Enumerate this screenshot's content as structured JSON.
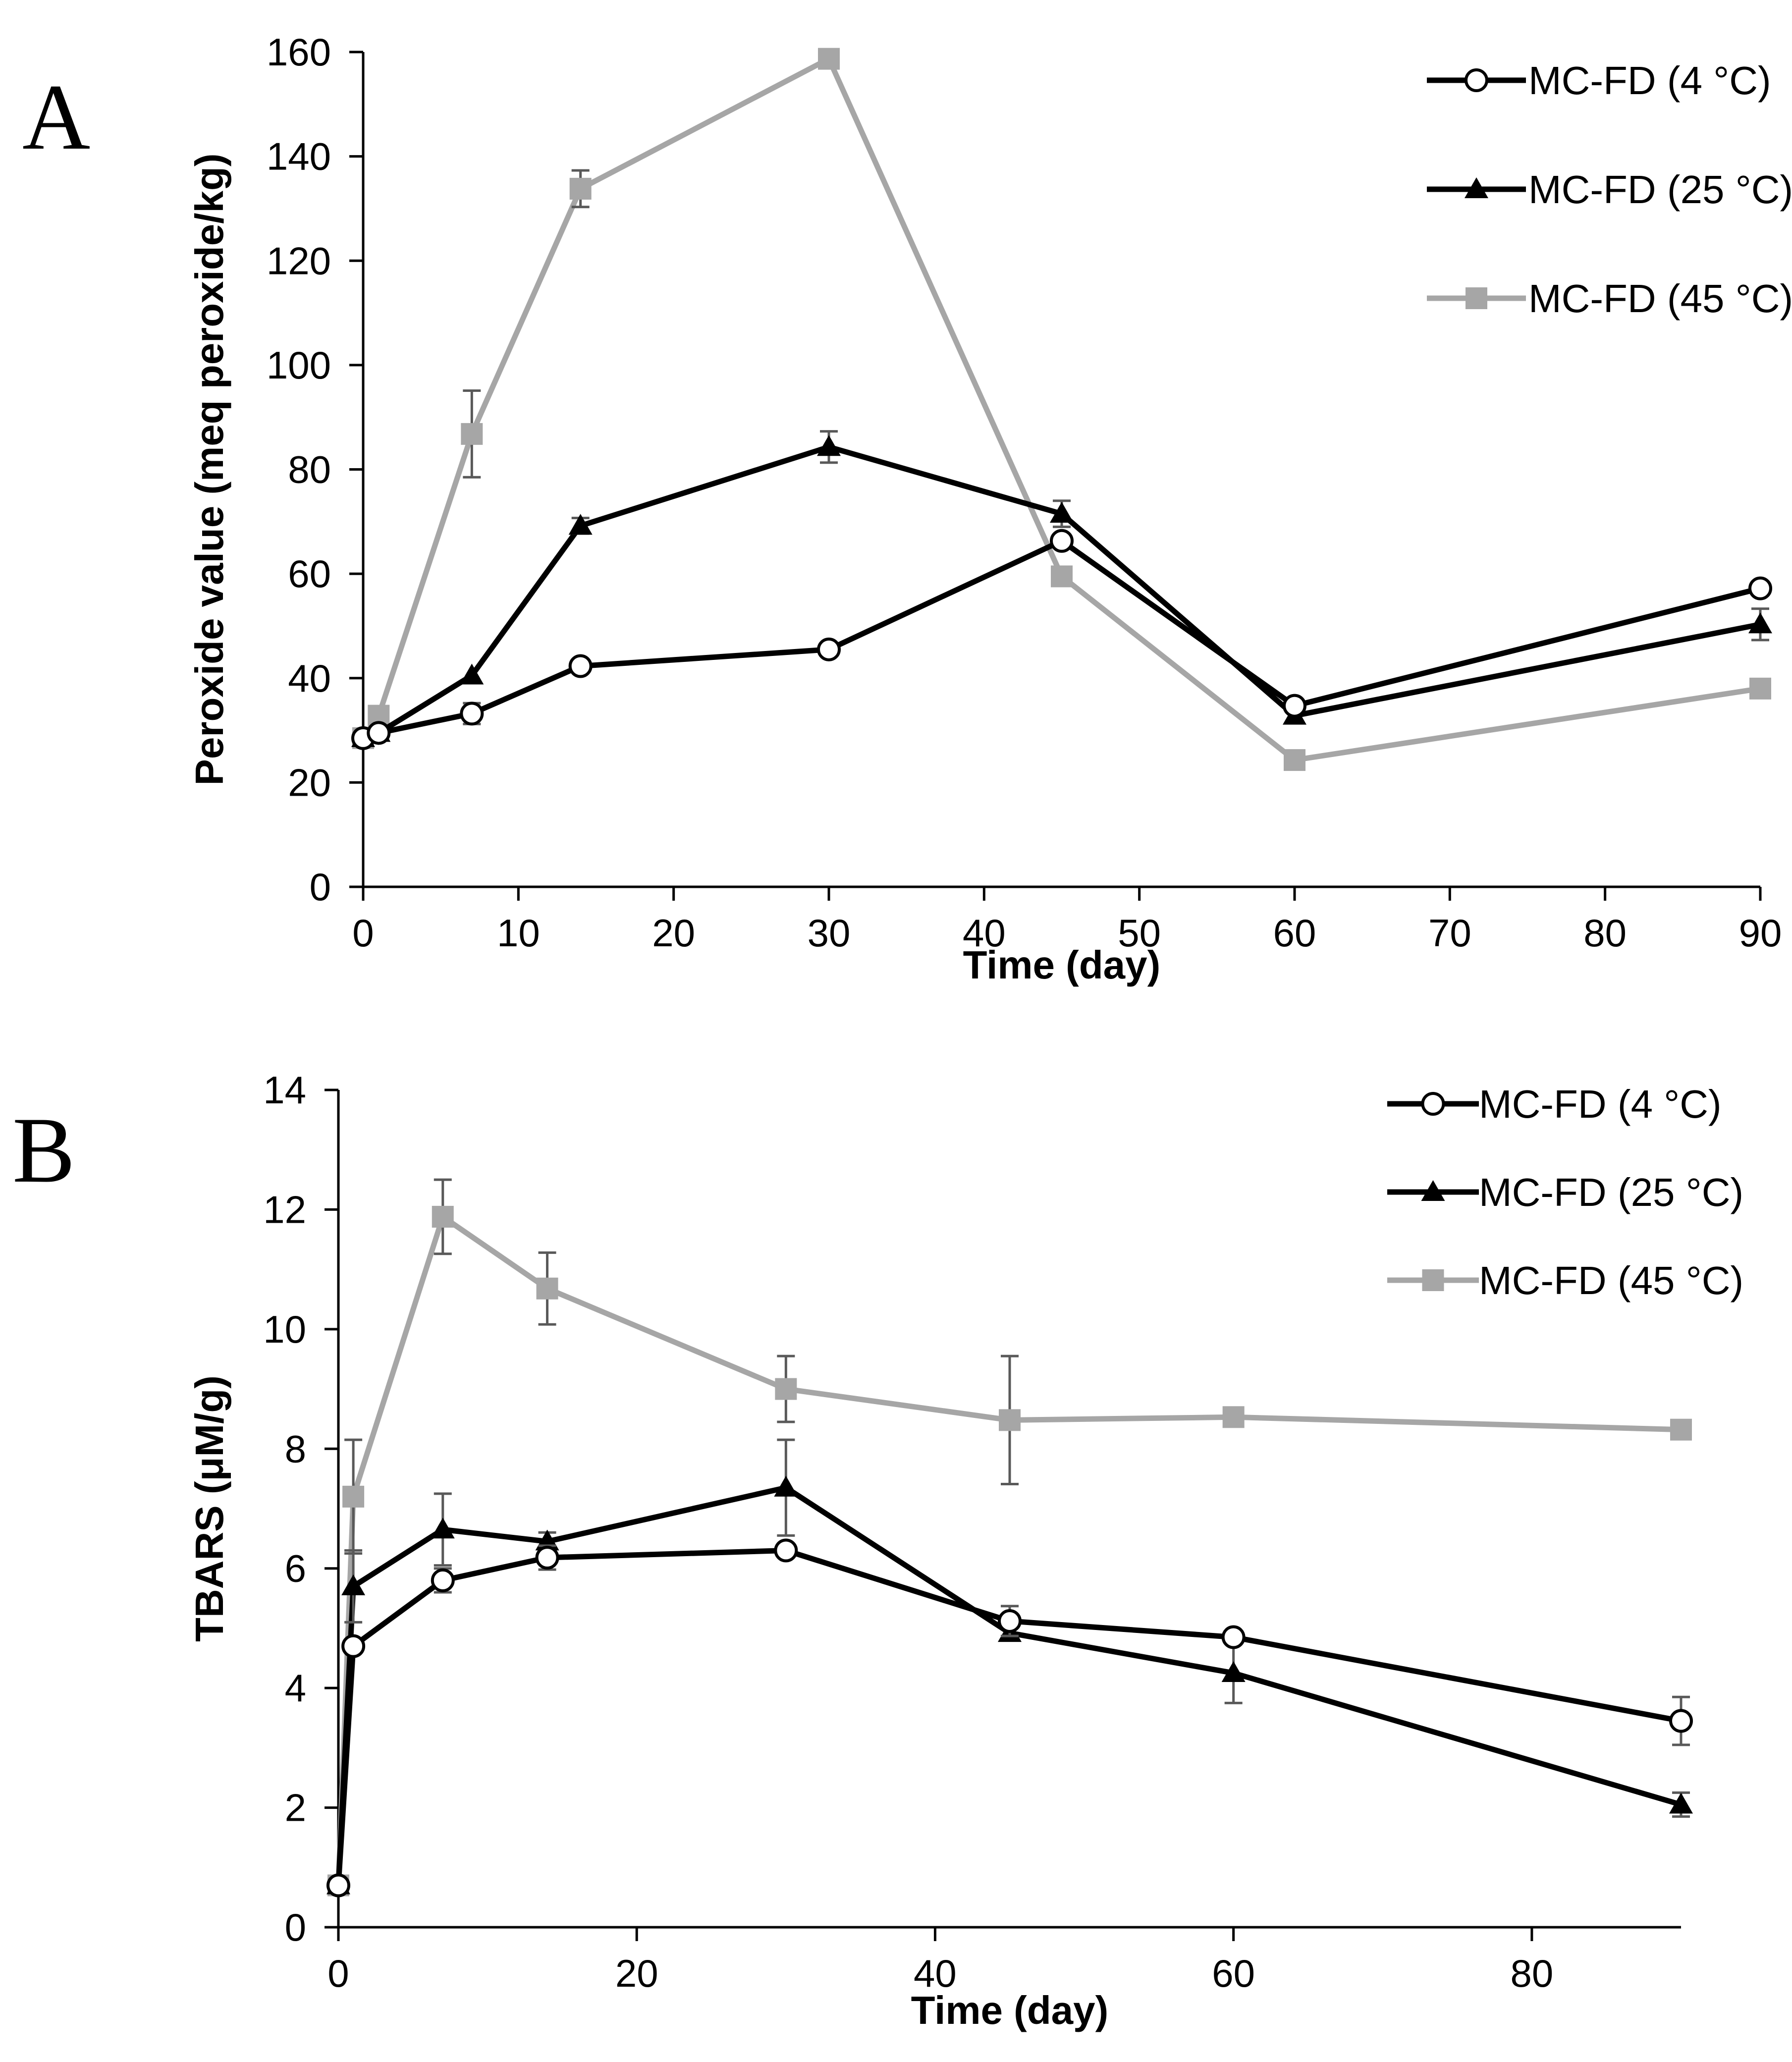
{
  "chart_data": [
    {
      "panel": "A",
      "type": "line",
      "xlabel": "Time (day)",
      "ylabel": "Peroxide value (meq peroxide/kg)",
      "xlim": [
        0,
        90
      ],
      "ylim": [
        0,
        160
      ],
      "xticks": [
        0,
        10,
        20,
        30,
        40,
        50,
        60,
        70,
        80,
        90
      ],
      "yticks": [
        0,
        20,
        40,
        60,
        80,
        100,
        120,
        140,
        160
      ],
      "legend_position": "top-right",
      "series": [
        {
          "name": "MC-FD (4 °C)",
          "marker": "circle-open",
          "color": "#000000",
          "x": [
            0,
            1,
            7,
            14,
            30,
            45,
            60,
            90
          ],
          "values": [
            28.5,
            29.5,
            33.2,
            42.3,
            45.5,
            66.3,
            34.7,
            57.2
          ],
          "errors": [
            0,
            0,
            2,
            0,
            0,
            0,
            0,
            0
          ]
        },
        {
          "name": "MC-FD (25 °C)",
          "marker": "triangle",
          "color": "#000000",
          "x": [
            0,
            1,
            7,
            14,
            30,
            45,
            60,
            90
          ],
          "values": [
            28.5,
            29.5,
            40.5,
            69.2,
            84.3,
            71.5,
            32.8,
            50.3
          ],
          "errors": [
            0,
            0,
            0,
            1.5,
            3,
            2.5,
            0,
            3
          ]
        },
        {
          "name": "MC-FD (45 °C)",
          "marker": "square",
          "color": "#a6a6a6",
          "x": [
            0,
            1,
            7,
            14,
            30,
            45,
            60,
            90
          ],
          "values": [
            28.5,
            32.8,
            86.8,
            133.8,
            158.7,
            59.5,
            24.3,
            38.0
          ],
          "errors": [
            0,
            0,
            8.3,
            3.5,
            0,
            0,
            0,
            0
          ]
        }
      ]
    },
    {
      "panel": "B",
      "type": "line",
      "xlabel": "Time (day)",
      "ylabel": "TBARS (μM/g)",
      "xlim": [
        0,
        90
      ],
      "ylim": [
        0,
        14
      ],
      "xticks": [
        0,
        20,
        40,
        60,
        80
      ],
      "yticks": [
        0,
        2,
        4,
        6,
        8,
        10,
        12,
        14
      ],
      "legend_position": "top-right",
      "series": [
        {
          "name": "MC-FD (4 °C)",
          "marker": "circle-open",
          "color": "#000000",
          "x": [
            0,
            1,
            7,
            14,
            30,
            45,
            60,
            90
          ],
          "values": [
            0.7,
            4.7,
            5.8,
            6.18,
            6.3,
            5.12,
            4.85,
            3.45
          ],
          "errors": [
            0,
            0,
            0.2,
            0.2,
            0,
            0.25,
            0,
            0.4
          ]
        },
        {
          "name": "MC-FD (25 °C)",
          "marker": "triangle",
          "color": "#000000",
          "x": [
            0,
            1,
            7,
            14,
            30,
            45,
            60,
            90
          ],
          "values": [
            0.7,
            5.7,
            6.65,
            6.45,
            7.35,
            4.92,
            4.25,
            2.05
          ],
          "errors": [
            0,
            0.6,
            0.6,
            0.15,
            0.8,
            0,
            0.5,
            0.2
          ]
        },
        {
          "name": "MC-FD (45 °C)",
          "marker": "square",
          "color": "#a6a6a6",
          "x": [
            0,
            1,
            7,
            14,
            30,
            45,
            60,
            90
          ],
          "values": [
            0.7,
            7.2,
            11.88,
            10.68,
            9.0,
            8.48,
            8.53,
            8.32
          ],
          "errors": [
            0,
            0.95,
            0.62,
            0.6,
            0.55,
            1.07,
            0,
            0
          ]
        }
      ]
    }
  ]
}
